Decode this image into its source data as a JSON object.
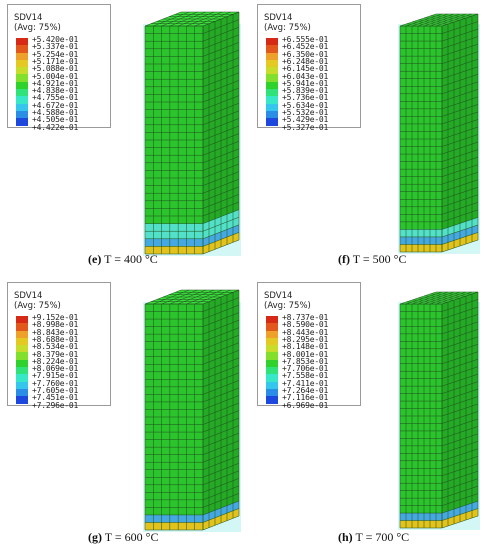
{
  "colors": {
    "legend": [
      "#d62a16",
      "#e2581c",
      "#eea12a",
      "#e4c923",
      "#c8dc2a",
      "#82e02c",
      "#2fd22c",
      "#2fe27a",
      "#37e8c8",
      "#35c6ee",
      "#2a8ee6",
      "#1d48de"
    ],
    "column_top": "#3cdc3c",
    "column_front": "#2cc42c",
    "column_side": "#24aa24",
    "mesh_line": "#1d4e1d",
    "base_yellow": "#e2c21c",
    "base_cyan": "#53e0c8",
    "base_blue": "#45a8e0",
    "halo": "#b4f2ee"
  },
  "panels": [
    {
      "id": "e",
      "legend_title": "SDV14",
      "legend_avg": "(Avg: 75%)",
      "values": [
        "+5.420e-01",
        "+5.337e-01",
        "+5.254e-01",
        "+5.171e-01",
        "+5.088e-01",
        "+5.004e-01",
        "+4.921e-01",
        "+4.838e-01",
        "+4.755e-01",
        "+4.672e-01",
        "+4.588e-01",
        "+4.505e-01",
        "+4.422e-01"
      ],
      "caption_letter": "(e)",
      "caption_text": "T = 400 °C"
    },
    {
      "id": "f",
      "legend_title": "SDV14",
      "legend_avg": "(Avg: 75%)",
      "values": [
        "+6.555e-01",
        "+6.452e-01",
        "+6.350e-01",
        "+6.248e-01",
        "+6.145e-01",
        "+6.043e-01",
        "+5.941e-01",
        "+5.839e-01",
        "+5.736e-01",
        "+5.634e-01",
        "+5.532e-01",
        "+5.429e-01",
        "+5.327e-01"
      ],
      "caption_letter": "(f)",
      "caption_text": "T = 500 °C"
    },
    {
      "id": "g",
      "legend_title": "SDV14",
      "legend_avg": "(Avg: 75%)",
      "values": [
        "+9.152e-01",
        "+8.998e-01",
        "+8.843e-01",
        "+8.688e-01",
        "+8.534e-01",
        "+8.379e-01",
        "+8.224e-01",
        "+8.069e-01",
        "+7.915e-01",
        "+7.760e-01",
        "+7.605e-01",
        "+7.451e-01",
        "+7.296e-01"
      ],
      "caption_letter": "(g)",
      "caption_text": "T = 600 °C"
    },
    {
      "id": "h",
      "legend_title": "SDV14",
      "legend_avg": "(Avg: 75%)",
      "values": [
        "+8.737e-01",
        "+8.590e-01",
        "+8.443e-01",
        "+8.295e-01",
        "+8.148e-01",
        "+8.001e-01",
        "+7.853e-01",
        "+7.706e-01",
        "+7.558e-01",
        "+7.411e-01",
        "+7.264e-01",
        "+7.116e-01",
        "+6.969e-01"
      ],
      "caption_letter": "(h)",
      "caption_text": "T = 700 °C"
    }
  ]
}
